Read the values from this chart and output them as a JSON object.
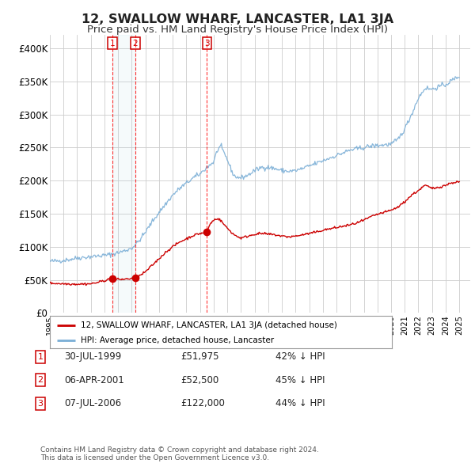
{
  "title": "12, SWALLOW WHARF, LANCASTER, LA1 3JA",
  "subtitle": "Price paid vs. HM Land Registry's House Price Index (HPI)",
  "title_fontsize": 11.5,
  "subtitle_fontsize": 9.5,
  "ylim": [
    0,
    420000
  ],
  "yticks": [
    0,
    50000,
    100000,
    150000,
    200000,
    250000,
    300000,
    350000,
    400000
  ],
  "ytick_labels": [
    "£0",
    "£50K",
    "£100K",
    "£150K",
    "£200K",
    "£250K",
    "£300K",
    "£350K",
    "£400K"
  ],
  "xlim_start": 1995.0,
  "xlim_end": 2025.8,
  "hpi_color": "#7aaed6",
  "price_color": "#cc0000",
  "bg_color": "#ffffff",
  "plot_bg": "#ffffff",
  "grid_color": "#cccccc",
  "sale_dates": [
    1999.578,
    2001.263,
    2006.513
  ],
  "sale_prices": [
    51975,
    52500,
    122000
  ],
  "sale_labels": [
    "1",
    "2",
    "3"
  ],
  "legend_line1": "12, SWALLOW WHARF, LANCASTER, LA1 3JA (detached house)",
  "legend_line2": "HPI: Average price, detached house, Lancaster",
  "table_rows": [
    [
      "1",
      "30-JUL-1999",
      "£51,975",
      "42% ↓ HPI"
    ],
    [
      "2",
      "06-APR-2001",
      "£52,500",
      "45% ↓ HPI"
    ],
    [
      "3",
      "07-JUL-2006",
      "£122,000",
      "44% ↓ HPI"
    ]
  ],
  "footer": "Contains HM Land Registry data © Crown copyright and database right 2024.\nThis data is licensed under the Open Government Licence v3.0.",
  "xtick_years": [
    1995,
    1996,
    1997,
    1998,
    1999,
    2000,
    2001,
    2002,
    2003,
    2004,
    2005,
    2006,
    2007,
    2008,
    2009,
    2010,
    2011,
    2012,
    2013,
    2014,
    2015,
    2016,
    2017,
    2018,
    2019,
    2020,
    2021,
    2022,
    2023,
    2024,
    2025
  ],
  "hpi_anchors_t": [
    1995.0,
    1995.5,
    1996.0,
    1996.5,
    1997.0,
    1997.5,
    1998.0,
    1998.5,
    1999.0,
    1999.5,
    2000.0,
    2000.5,
    2001.0,
    2001.5,
    2002.0,
    2002.5,
    2003.0,
    2003.5,
    2004.0,
    2004.5,
    2005.0,
    2005.5,
    2006.0,
    2006.5,
    2007.0,
    2007.25,
    2007.5,
    2007.75,
    2008.0,
    2008.25,
    2008.5,
    2008.75,
    2009.0,
    2009.5,
    2010.0,
    2010.5,
    2011.0,
    2011.5,
    2012.0,
    2012.5,
    2013.0,
    2013.5,
    2014.0,
    2014.5,
    2015.0,
    2015.5,
    2016.0,
    2016.5,
    2017.0,
    2017.5,
    2018.0,
    2018.5,
    2019.0,
    2019.5,
    2020.0,
    2020.5,
    2021.0,
    2021.5,
    2022.0,
    2022.5,
    2023.0,
    2023.5,
    2024.0,
    2024.5,
    2025.0
  ],
  "hpi_anchors_v": [
    78000,
    78500,
    79500,
    81000,
    83000,
    84000,
    85000,
    86000,
    87000,
    88500,
    91000,
    94000,
    98000,
    108000,
    122000,
    138000,
    152000,
    165000,
    178000,
    188000,
    196000,
    204000,
    210000,
    220000,
    228000,
    245000,
    252000,
    242000,
    232000,
    218000,
    207000,
    205000,
    204000,
    208000,
    215000,
    220000,
    220000,
    218000,
    215000,
    214000,
    215000,
    218000,
    222000,
    226000,
    230000,
    234000,
    238000,
    242000,
    246000,
    248000,
    250000,
    252000,
    253000,
    254000,
    255000,
    262000,
    278000,
    300000,
    325000,
    340000,
    338000,
    342000,
    345000,
    352000,
    358000
  ],
  "price_anchors_t": [
    1995.0,
    1996.0,
    1997.0,
    1998.0,
    1998.5,
    1999.0,
    1999.578,
    2000.0,
    2000.5,
    2001.0,
    2001.263,
    2001.5,
    2002.0,
    2002.5,
    2003.0,
    2003.5,
    2004.0,
    2004.5,
    2005.0,
    2005.5,
    2006.0,
    2006.513,
    2006.75,
    2007.0,
    2007.25,
    2007.5,
    2008.0,
    2008.5,
    2009.0,
    2009.5,
    2010.0,
    2010.5,
    2011.0,
    2011.5,
    2012.0,
    2012.5,
    2013.0,
    2013.5,
    2014.0,
    2014.5,
    2015.0,
    2015.5,
    2016.0,
    2016.5,
    2017.0,
    2017.5,
    2018.0,
    2018.5,
    2019.0,
    2019.5,
    2020.0,
    2020.5,
    2021.0,
    2021.5,
    2022.0,
    2022.5,
    2023.0,
    2023.5,
    2024.0,
    2024.5,
    2025.0
  ],
  "price_anchors_v": [
    45000,
    44000,
    43500,
    44000,
    46000,
    49000,
    51975,
    50500,
    51000,
    52000,
    52500,
    55000,
    62000,
    72000,
    82000,
    92000,
    100000,
    107000,
    112000,
    117000,
    120000,
    122000,
    135000,
    140000,
    143000,
    140000,
    128000,
    118000,
    113000,
    116000,
    119000,
    120000,
    119000,
    118000,
    116000,
    115000,
    116000,
    118000,
    120000,
    122000,
    125000,
    127000,
    129000,
    131000,
    133000,
    136000,
    140000,
    145000,
    149000,
    152000,
    155000,
    160000,
    168000,
    178000,
    185000,
    193000,
    188000,
    190000,
    193000,
    197000,
    198000
  ]
}
